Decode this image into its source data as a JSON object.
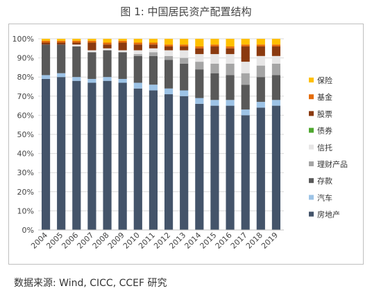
{
  "figure_title": "图 1: 中国居民资产配置结构",
  "source_note": "数据来源: Wind, CICC, CCEF 研究",
  "chart_data": {
    "type": "bar",
    "stacked": true,
    "categories": [
      "2004",
      "2005",
      "2006",
      "2007",
      "2008",
      "2009",
      "2010",
      "2011",
      "2012",
      "2013",
      "2014",
      "2015",
      "2016",
      "2017",
      "2018",
      "2019"
    ],
    "ylim": [
      0,
      100
    ],
    "yticks": [
      "0%",
      "10%",
      "20%",
      "30%",
      "40%",
      "50%",
      "60%",
      "70%",
      "80%",
      "90%",
      "100%"
    ],
    "grid": true,
    "legend_position": "right",
    "series": [
      {
        "name": "房地产",
        "color": "#44546a",
        "values": [
          79,
          80,
          78,
          77,
          78,
          77,
          74,
          73,
          71,
          70,
          66,
          65,
          65,
          60,
          64,
          65
        ]
      },
      {
        "name": "汽车",
        "color": "#9dc3e6",
        "values": [
          2,
          2,
          2,
          2,
          2,
          2,
          3,
          3,
          3,
          3,
          3,
          3,
          3,
          3,
          3,
          3
        ]
      },
      {
        "name": "存款",
        "color": "#595959",
        "values": [
          16,
          15,
          16,
          14,
          14,
          14,
          14,
          15,
          15,
          14,
          15,
          14,
          13,
          13,
          13,
          13
        ]
      },
      {
        "name": "理财产品",
        "color": "#a5a5a5",
        "values": [
          0,
          0,
          0,
          0,
          0,
          0,
          1,
          2,
          2,
          3,
          4,
          5,
          6,
          6,
          6,
          6
        ]
      },
      {
        "name": "信托",
        "color": "#e7e6e6",
        "values": [
          0,
          0,
          1,
          1,
          1,
          1,
          2,
          2,
          3,
          4,
          4,
          5,
          5,
          6,
          5,
          4
        ]
      },
      {
        "name": "债券",
        "color": "#4ea72e",
        "values": [
          0,
          0,
          0,
          0,
          0,
          0,
          0,
          0,
          0,
          0,
          0,
          0,
          0,
          0,
          0,
          0
        ]
      },
      {
        "name": "股票",
        "color": "#8b3a0f",
        "values": [
          1,
          1,
          1,
          4,
          2,
          4,
          3,
          2,
          2,
          2,
          3,
          4,
          3,
          8,
          5,
          5
        ]
      },
      {
        "name": "基金",
        "color": "#e46c0a",
        "values": [
          1,
          1,
          1,
          1,
          1,
          1,
          1,
          1,
          1,
          1,
          1,
          1,
          1,
          1,
          1,
          1
        ]
      },
      {
        "name": "保险",
        "color": "#ffc000",
        "values": [
          1,
          1,
          1,
          1,
          2,
          1,
          2,
          2,
          3,
          3,
          4,
          3,
          4,
          3,
          3,
          3
        ]
      }
    ]
  }
}
